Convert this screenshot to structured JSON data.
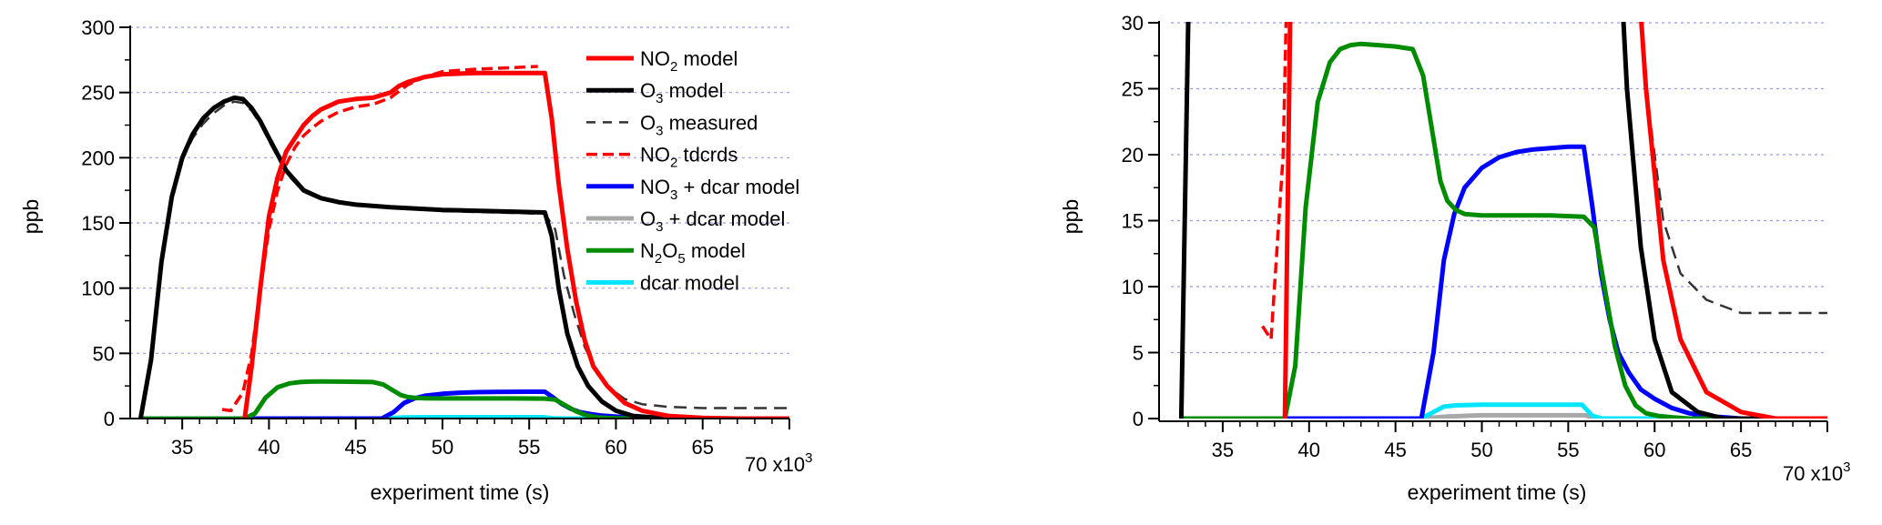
{
  "chart_data": [
    {
      "type": "line",
      "xlabel": "experiment time (s)",
      "x_multiplier_label": "70 x10³",
      "x_multiplier_base": "70 x10",
      "x_multiplier_exp": "3",
      "ylabel": "ppb",
      "xlim": [
        32000,
        70000
      ],
      "ylim": [
        0,
        300
      ],
      "xticks": [
        35000,
        40000,
        45000,
        50000,
        55000,
        60000,
        65000
      ],
      "xtick_labels": [
        "35",
        "40",
        "45",
        "50",
        "55",
        "60",
        "65"
      ],
      "yticks": [
        0,
        50,
        100,
        150,
        200,
        250,
        300
      ],
      "ytick_labels": [
        "0",
        "50",
        "100",
        "150",
        "200",
        "250",
        "300"
      ],
      "grid": "horizontal dashed",
      "legend_position": "top-right",
      "series": [
        {
          "key": "no2_model",
          "name": "NO₂ model",
          "name_parts": [
            "NO",
            "2",
            " model"
          ],
          "color": "#ff0000",
          "dash": "solid",
          "width": 5,
          "x": [
            38600,
            39000,
            39500,
            40000,
            40500,
            41000,
            41500,
            42000,
            42500,
            43000,
            44000,
            45000,
            46000,
            47000,
            47500,
            48000,
            49000,
            50000,
            52000,
            54000,
            55900,
            56300,
            56700,
            57200,
            57700,
            58200,
            58700,
            59500,
            60500,
            61500,
            63000,
            65000,
            67000,
            70000
          ],
          "y": [
            0,
            40,
            100,
            155,
            185,
            205,
            215,
            225,
            232,
            237,
            243,
            245,
            246,
            250,
            255,
            258,
            262,
            264,
            265,
            265,
            265,
            230,
            180,
            130,
            90,
            60,
            40,
            25,
            12,
            6,
            2,
            0.5,
            0,
            0
          ]
        },
        {
          "key": "o3_model",
          "name": "O₃ model",
          "name_parts": [
            "O",
            "3",
            " model"
          ],
          "color": "#000000",
          "dash": "solid",
          "width": 5,
          "x": [
            32600,
            33200,
            33800,
            34400,
            35000,
            35600,
            36200,
            36800,
            37400,
            38000,
            38500,
            39000,
            39500,
            40000,
            41000,
            42000,
            43000,
            44000,
            45000,
            47000,
            50000,
            53000,
            55900,
            56300,
            56700,
            57200,
            57800,
            58400,
            59200,
            60000,
            61000,
            62500,
            64000,
            66000,
            70000
          ],
          "y": [
            0,
            45,
            120,
            170,
            200,
            218,
            230,
            238,
            243,
            246,
            245,
            238,
            228,
            215,
            190,
            175,
            169,
            166,
            164,
            162,
            160,
            159,
            158,
            140,
            100,
            65,
            40,
            25,
            13,
            6,
            2,
            0.5,
            0,
            0,
            0
          ]
        },
        {
          "key": "o3_measured",
          "name": "O₃ measured",
          "name_parts": [
            "O",
            "3",
            " measured"
          ],
          "color": "#333333",
          "dash": "long-dash",
          "width": 2.5,
          "x": [
            32600,
            33200,
            33800,
            34400,
            35000,
            35600,
            36200,
            36800,
            37400,
            38000,
            38500,
            39000,
            39500,
            40000,
            41000,
            42000,
            43000,
            44000,
            45000,
            47000,
            50000,
            53000,
            55900,
            56500,
            57000,
            57600,
            58200,
            58800,
            59500,
            60500,
            61500,
            63000,
            65000,
            67000,
            70000
          ],
          "y": [
            0,
            50,
            125,
            172,
            198,
            215,
            226,
            234,
            240,
            243,
            242,
            236,
            226,
            213,
            188,
            174,
            168,
            166,
            164,
            162,
            159,
            158,
            157,
            145,
            110,
            80,
            55,
            38,
            25,
            15,
            11,
            9,
            8,
            8,
            8
          ]
        },
        {
          "key": "no2_tdcrds",
          "name": "NO₂ tdcrds",
          "name_parts": [
            "NO",
            "2",
            " tdcrds"
          ],
          "color": "#ff0000",
          "dash": "short-dash",
          "width": 3.5,
          "x": [
            37300,
            37800,
            38500,
            39000,
            39500,
            40000,
            40500,
            41000,
            41500,
            42000,
            42500,
            43000,
            44000,
            45000,
            46000,
            47000,
            48000,
            49000,
            50000,
            52000,
            54000,
            55500
          ],
          "y": [
            7,
            6,
            20,
            50,
            100,
            145,
            175,
            195,
            208,
            217,
            223,
            228,
            235,
            239,
            241,
            246,
            256,
            262,
            266,
            268,
            269,
            270
          ]
        },
        {
          "key": "no3_dcar",
          "name": "NO₃ + dcar model",
          "name_parts": [
            "NO",
            "3",
            " + dcar model"
          ],
          "color": "#0000ff",
          "dash": "solid",
          "width": 5,
          "x": [
            32600,
            46500,
            47200,
            47800,
            48400,
            49000,
            50000,
            51000,
            52000,
            53000,
            54000,
            55000,
            55900,
            56400,
            56900,
            57400,
            57900,
            58500,
            59200,
            60000,
            61000,
            62000,
            63000,
            64000,
            65000,
            70000
          ],
          "y": [
            0,
            0,
            5,
            12,
            15.5,
            17.5,
            19,
            19.8,
            20.2,
            20.4,
            20.5,
            20.6,
            20.6,
            16,
            11,
            7.5,
            5,
            3.5,
            2.2,
            1.5,
            0.8,
            0.4,
            0.2,
            0.1,
            0,
            0
          ]
        },
        {
          "key": "o3_dcar",
          "name": "O₃ + dcar model",
          "name_parts": [
            "O",
            "3",
            " + dcar model"
          ],
          "color": "#a8a8a8",
          "dash": "solid",
          "width": 5,
          "x": [
            32600,
            46500,
            48000,
            50000,
            56000,
            56500,
            70000
          ],
          "y": [
            0,
            0,
            0.15,
            0.25,
            0.25,
            0,
            0
          ]
        },
        {
          "key": "n2o5_model",
          "name": "N₂O₅ model",
          "name_parts": [
            "N",
            "2",
            "O",
            "5",
            " model"
          ],
          "color": "#008c00",
          "dash": "solid",
          "width": 5,
          "x": [
            32600,
            38600,
            39200,
            39800,
            40500,
            41200,
            41800,
            42400,
            43000,
            44000,
            45000,
            46000,
            46600,
            47100,
            47600,
            48000,
            48500,
            49000,
            50000,
            52000,
            54000,
            55900,
            56500,
            57100,
            57700,
            58300,
            58900,
            59500,
            60200,
            61000,
            62000,
            70000
          ],
          "y": [
            0,
            0,
            4,
            16,
            24,
            27,
            28,
            28.3,
            28.4,
            28.3,
            28.2,
            28.0,
            26,
            22,
            18,
            16.5,
            15.8,
            15.5,
            15.4,
            15.4,
            15.4,
            15.3,
            14.5,
            10,
            5.5,
            2.5,
            1,
            0.4,
            0.2,
            0.1,
            0,
            0
          ]
        },
        {
          "key": "dcar_model",
          "name": "dcar model",
          "name_parts": [
            "",
            "",
            "dcar model"
          ],
          "color": "#00e5ff",
          "dash": "solid",
          "width": 5,
          "x": [
            32600,
            46500,
            47200,
            47800,
            48500,
            50000,
            52000,
            54000,
            55800,
            56400,
            57000,
            70000
          ],
          "y": [
            0,
            0,
            0.5,
            0.9,
            1.0,
            1.05,
            1.05,
            1.05,
            1.05,
            0.2,
            0,
            0
          ]
        }
      ]
    },
    {
      "type": "line",
      "xlabel": "experiment time (s)",
      "x_multiplier_label": "70 x10³",
      "x_multiplier_base": "70 x10",
      "x_multiplier_exp": "3",
      "ylabel": "ppb",
      "xlim": [
        32000,
        70000
      ],
      "ylim": [
        0,
        30
      ],
      "xticks": [
        35000,
        40000,
        45000,
        50000,
        55000,
        60000,
        65000
      ],
      "xtick_labels": [
        "35",
        "40",
        "45",
        "50",
        "55",
        "60",
        "65"
      ],
      "yticks": [
        0,
        5,
        10,
        15,
        20,
        25,
        30
      ],
      "ytick_labels": [
        "0",
        "5",
        "10",
        "15",
        "20",
        "25",
        "30"
      ],
      "grid": "horizontal dashed",
      "note": "same series as left panel, zoomed y-axis"
    }
  ]
}
